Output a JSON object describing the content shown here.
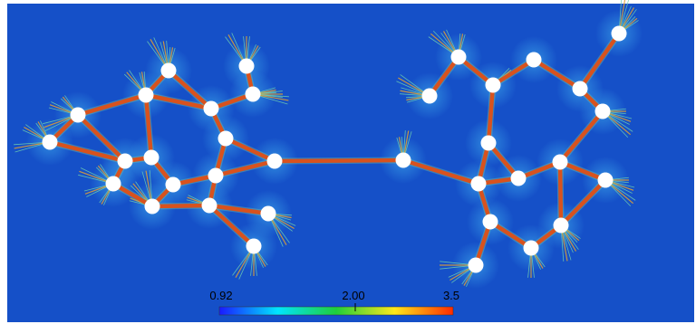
{
  "colorbar": {
    "min_label": "0.92",
    "mid_label": "2.00",
    "max_label": "3.5",
    "min_value": 0.92,
    "max_value": 3.5,
    "colormap": [
      "#1a1aff",
      "#00e5ff",
      "#1fcf3a",
      "#ffe81a",
      "#ff2a00"
    ]
  },
  "colors": {
    "background": "#1550c8",
    "background_glow": "#2f8be0",
    "edge": "#d8521e",
    "node": "#ffffff",
    "frame_white": "#ffffff"
  }
}
